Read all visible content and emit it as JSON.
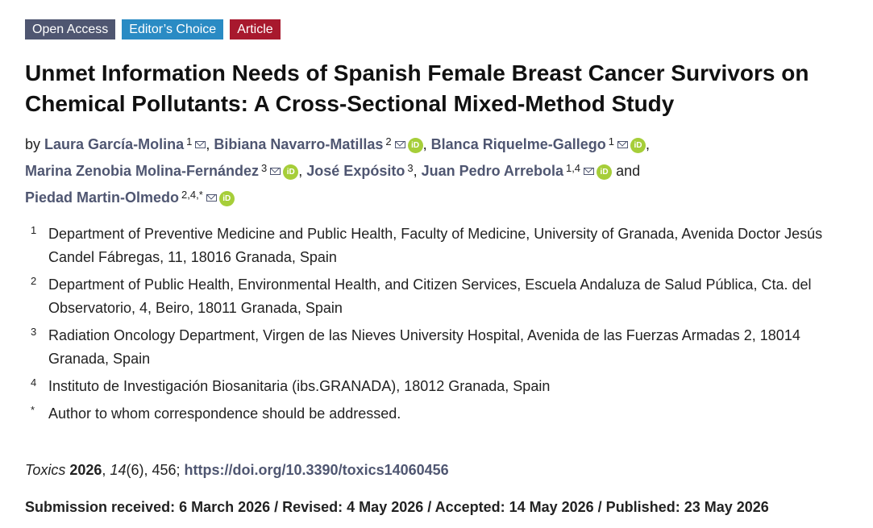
{
  "badges": [
    {
      "label": "Open Access",
      "color": "#4f5671"
    },
    {
      "label": "Editor’s Choice",
      "color": "#2a8bc4"
    },
    {
      "label": "Article",
      "color": "#a8192e"
    }
  ],
  "title": "Unmet Information Needs of Spanish Female Breast Cancer Survivors on Chemical Pollutants: A Cross-Sectional Mixed-Method Study",
  "authors_prefix": "by",
  "authors_conjunction": "and",
  "authors": [
    {
      "name": "Laura García-Molina",
      "aff": "1"
    },
    {
      "name": "Bibiana Navarro-Matillas",
      "aff": "2"
    },
    {
      "name": "Blanca Riquelme-Gallego",
      "aff": "1"
    },
    {
      "name": "Marina Zenobia Molina-Fernández",
      "aff": "3"
    },
    {
      "name": "José Expósito",
      "aff": "3"
    },
    {
      "name": "Juan Pedro Arrebola",
      "aff": "1,4"
    },
    {
      "name": "Piedad Martin-Olmedo",
      "aff": "2,4,*"
    }
  ],
  "icons": {
    "mail": "mail-icon",
    "orcid": "orcid-icon",
    "orcid_text": "iD",
    "orcid_color": "#a6ce39"
  },
  "affiliations": [
    {
      "marker": "1",
      "text": "Department of Preventive Medicine and Public Health, Faculty of Medicine, University of Granada, Avenida Doctor Jesús Candel Fábregas, 11, 18016 Granada, Spain"
    },
    {
      "marker": "2",
      "text": "Department of Public Health, Environmental Health, and Citizen Services, Escuela Andaluza de Salud Pública, Cta. del Observatorio, 4, Beiro, 18011 Granada, Spain"
    },
    {
      "marker": "3",
      "text": "Radiation Oncology Department, Virgen de las Nieves University Hospital, Avenida de las Fuerzas Armadas 2, 18014 Granada, Spain"
    },
    {
      "marker": "4",
      "text": "Instituto de Investigación Biosanitaria (ibs.GRANADA), 18012 Granada, Spain"
    },
    {
      "marker": "*",
      "text": "Author to whom correspondence should be addressed."
    }
  ],
  "citation": {
    "journal": "Toxics",
    "year": "2026",
    "volume": "14",
    "issue_pages": "(6), 456;",
    "doi": "https://doi.org/10.3390/toxics14060456"
  },
  "dates": "Submission received: 6 March 2026 / Revised: 4 May 2026 / Accepted: 14 May 2026 / Published: 23 May 2026"
}
